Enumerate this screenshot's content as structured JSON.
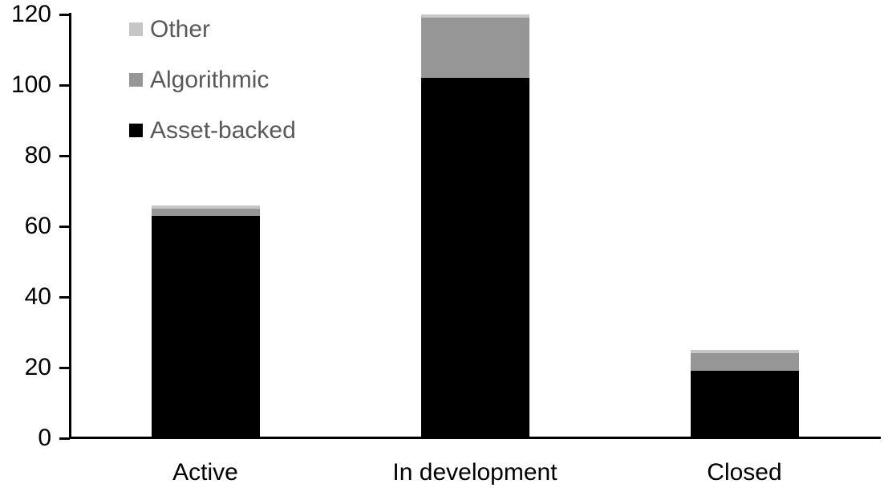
{
  "chart_data": {
    "type": "bar",
    "stacked": true,
    "title": "",
    "xlabel": "",
    "ylabel": "",
    "categories": [
      "Active",
      "In development",
      "Closed"
    ],
    "series": [
      {
        "name": "Asset-backed",
        "color": "#000000",
        "values": [
          63,
          102,
          19
        ]
      },
      {
        "name": "Algorithmic",
        "color": "#969696",
        "values": [
          2,
          17,
          5
        ]
      },
      {
        "name": "Other",
        "color": "#c6c6c6",
        "values": [
          1,
          1,
          1
        ]
      }
    ],
    "totals": [
      66,
      120,
      25
    ],
    "ylim": [
      0,
      120
    ],
    "yticks": [
      0,
      20,
      40,
      60,
      80,
      100,
      120
    ],
    "grid": false,
    "legend_position": "top-left",
    "legend_order": [
      "Other",
      "Algorithmic",
      "Asset-backed"
    ],
    "axis_color": "#000000",
    "tick_label_color": "#000000",
    "legend_text_color": "#595959",
    "background_color": "#ffffff"
  }
}
